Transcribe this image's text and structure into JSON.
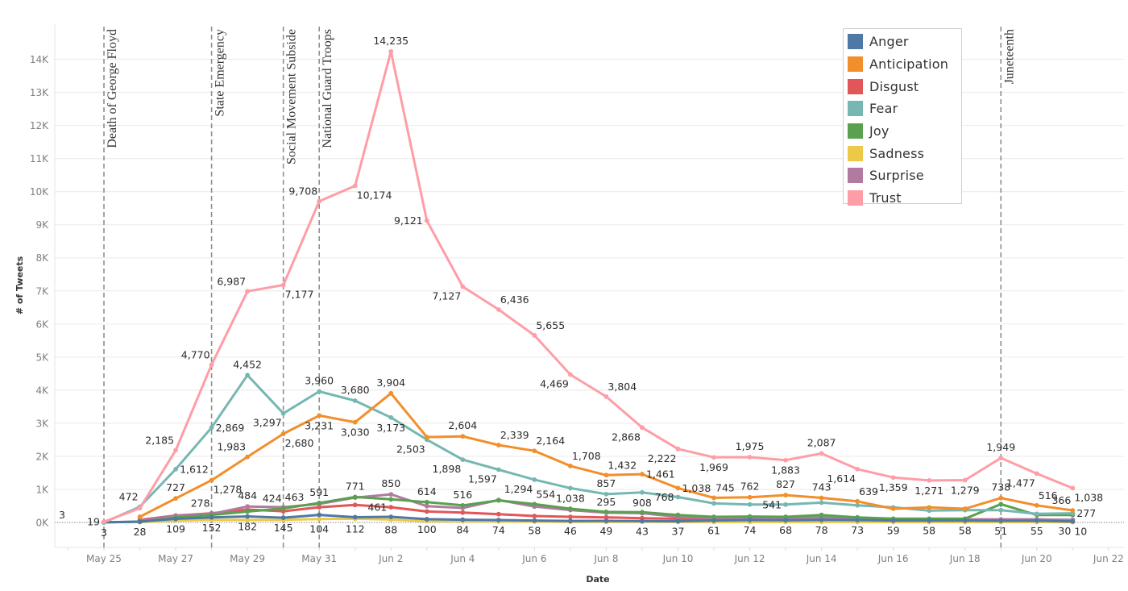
{
  "chart_data": {
    "type": "line",
    "title": "",
    "xlabel": "Date",
    "ylabel": "# of Tweets",
    "xlim_days": [
      -1.37,
      28.43
    ],
    "ylim": [
      -755,
      15060
    ],
    "grid": true,
    "legend_placement": "top-right",
    "dates": [
      "May 25",
      "May 26",
      "May 27",
      "May 28",
      "May 29",
      "May 30",
      "May 31",
      "Jun 1",
      "Jun 2",
      "Jun 3",
      "Jun 4",
      "Jun 5",
      "Jun 6",
      "Jun 7",
      "Jun 8",
      "Jun 9",
      "Jun 10",
      "Jun 11",
      "Jun 12",
      "Jun 13",
      "Jun 14",
      "Jun 15",
      "Jun 16",
      "Jun 17",
      "Jun 18",
      "Jun 19",
      "Jun 20",
      "Jun 21"
    ],
    "x_ticks": [
      "May 25",
      "May 27",
      "May 29",
      "May 31",
      "Jun 2",
      "Jun 4",
      "Jun 6",
      "Jun 8",
      "Jun 10",
      "Jun 12",
      "Jun 14",
      "Jun 16",
      "Jun 18",
      "Jun 20",
      "Jun 22"
    ],
    "x_tick_days": [
      0,
      2,
      4,
      6,
      8,
      10,
      12,
      14,
      16,
      18,
      20,
      22,
      24,
      26,
      28
    ],
    "y_ticks": [
      "0K",
      "1K",
      "2K",
      "3K",
      "4K",
      "5K",
      "6K",
      "7K",
      "8K",
      "9K",
      "10K",
      "11K",
      "12K",
      "13K",
      "14K"
    ],
    "y_tick_values": [
      0,
      1000,
      2000,
      3000,
      4000,
      5000,
      6000,
      7000,
      8000,
      9000,
      10000,
      11000,
      12000,
      13000,
      14000
    ],
    "zero_line_label": "3",
    "reference_lines": [
      {
        "day": 0,
        "label": "Death of George Floyd"
      },
      {
        "day": 3,
        "label": "State Emergency"
      },
      {
        "day": 5,
        "label": "Social Movement Subside"
      },
      {
        "day": 6,
        "label": "National Guard Troops"
      },
      {
        "day": 25,
        "label": "Juneteenth"
      }
    ],
    "series": [
      {
        "name": "Anger",
        "color": "#4e79a7",
        "values": [
          3,
          28,
          109,
          152,
          182,
          145,
          230,
          160,
          170,
          100,
          84,
          74,
          58,
          46,
          49,
          43,
          37,
          61,
          74,
          68,
          78,
          73,
          59,
          58,
          58,
          51,
          55,
          30
        ],
        "labels": [
          {
            "i": 0,
            "text": "3",
            "pos": "below"
          },
          {
            "i": 1,
            "text": "28",
            "pos": "below"
          },
          {
            "i": 2,
            "text": "109",
            "pos": "below"
          },
          {
            "i": 3,
            "text": "152",
            "pos": "below"
          },
          {
            "i": 4,
            "text": "182",
            "pos": "below"
          },
          {
            "i": 5,
            "text": "145",
            "pos": "below"
          },
          {
            "i": 9,
            "text": "100",
            "pos": "below"
          },
          {
            "i": 10,
            "text": "84",
            "pos": "below"
          },
          {
            "i": 11,
            "text": "74",
            "pos": "below"
          },
          {
            "i": 12,
            "text": "58",
            "pos": "below"
          },
          {
            "i": 13,
            "text": "46",
            "pos": "below"
          },
          {
            "i": 14,
            "text": "49",
            "pos": "below"
          },
          {
            "i": 15,
            "text": "43",
            "pos": "below"
          },
          {
            "i": 16,
            "text": "37",
            "pos": "below"
          },
          {
            "i": 17,
            "text": "61",
            "pos": "below"
          },
          {
            "i": 18,
            "text": "74",
            "pos": "below"
          },
          {
            "i": 19,
            "text": "68",
            "pos": "below"
          },
          {
            "i": 20,
            "text": "78",
            "pos": "below"
          },
          {
            "i": 21,
            "text": "73",
            "pos": "below"
          },
          {
            "i": 22,
            "text": "59",
            "pos": "below"
          },
          {
            "i": 23,
            "text": "58",
            "pos": "below"
          },
          {
            "i": 24,
            "text": "58",
            "pos": "below"
          },
          {
            "i": 25,
            "text": "51",
            "pos": "below"
          },
          {
            "i": 26,
            "text": "55",
            "pos": "below"
          },
          {
            "i": 27,
            "text": "30",
            "pos": "below-left"
          }
        ]
      },
      {
        "name": "Anticipation",
        "color": "#f28e2b",
        "values": [
          null,
          170,
          727,
          1278,
          1983,
          2680,
          3231,
          3030,
          3904,
          2580,
          2604,
          2339,
          2164,
          1708,
          1432,
          1461,
          1038,
          745,
          762,
          827,
          743,
          639,
          415,
          455,
          415,
          738,
          516,
          366
        ],
        "labels": [
          {
            "i": 2,
            "text": "727",
            "pos": "above"
          },
          {
            "i": 3,
            "text": "1,278",
            "pos": "below-right"
          },
          {
            "i": 4,
            "text": "1,983",
            "pos": "above-left"
          },
          {
            "i": 5,
            "text": "2,680",
            "pos": "below-right"
          },
          {
            "i": 6,
            "text": "3,231",
            "pos": "below"
          },
          {
            "i": 7,
            "text": "3,030",
            "pos": "below"
          },
          {
            "i": 8,
            "text": "3,904",
            "pos": "above"
          },
          {
            "i": 10,
            "text": "2,604",
            "pos": "above"
          },
          {
            "i": 11,
            "text": "2,339",
            "pos": "above-right"
          },
          {
            "i": 12,
            "text": "2,164",
            "pos": "above-right"
          },
          {
            "i": 13,
            "text": "1,708",
            "pos": "above-right"
          },
          {
            "i": 14,
            "text": "1,432",
            "pos": "above-right"
          },
          {
            "i": 15,
            "text": "1,461",
            "pos": "right"
          },
          {
            "i": 16,
            "text": "1,038",
            "pos": "right"
          },
          {
            "i": 17,
            "text": "745",
            "pos": "above-right"
          },
          {
            "i": 18,
            "text": "762",
            "pos": "above"
          },
          {
            "i": 19,
            "text": "827",
            "pos": "above"
          },
          {
            "i": 20,
            "text": "743",
            "pos": "above"
          },
          {
            "i": 21,
            "text": "639",
            "pos": "above-right"
          },
          {
            "i": 25,
            "text": "738",
            "pos": "above"
          },
          {
            "i": 26,
            "text": "516",
            "pos": "above-right"
          },
          {
            "i": 27,
            "text": "366",
            "pos": "above-left"
          }
        ]
      },
      {
        "name": "Disgust",
        "color": "#e15759",
        "values": [
          null,
          80,
          210,
          278,
          390,
          340,
          460,
          530,
          461,
          333,
          300,
          252,
          195,
          170,
          155,
          130,
          110,
          100,
          100,
          100,
          100,
          100,
          90,
          90,
          90,
          90,
          90,
          70
        ],
        "labels": [
          {
            "i": 3,
            "text": "278",
            "pos": "above-left"
          },
          {
            "i": 8,
            "text": "461",
            "pos": "left"
          }
        ]
      },
      {
        "name": "Fear",
        "color": "#76b7b2",
        "values": [
          1,
          472,
          1612,
          2869,
          4452,
          3297,
          3960,
          3680,
          3173,
          2503,
          1898,
          1597,
          1294,
          1038,
          857,
          908,
          768,
          577,
          545,
          541,
          600,
          520,
          455,
          358,
          374,
          374,
          260,
          277
        ],
        "labels": [
          {
            "i": 1,
            "text": "472",
            "pos": "above-left"
          },
          {
            "i": 2,
            "text": "1,612",
            "pos": "right"
          },
          {
            "i": 3,
            "text": "2,869",
            "pos": "right"
          },
          {
            "i": 4,
            "text": "4,452",
            "pos": "above"
          },
          {
            "i": 5,
            "text": "3,297",
            "pos": "below-left"
          },
          {
            "i": 6,
            "text": "3,960",
            "pos": "above"
          },
          {
            "i": 7,
            "text": "3,680",
            "pos": "above"
          },
          {
            "i": 8,
            "text": "3,173",
            "pos": "below"
          },
          {
            "i": 9,
            "text": "2,503",
            "pos": "below-left"
          },
          {
            "i": 10,
            "text": "1,898",
            "pos": "below-left"
          },
          {
            "i": 11,
            "text": "1,597",
            "pos": "below-left"
          },
          {
            "i": 12,
            "text": "1,294",
            "pos": "below-left"
          },
          {
            "i": 13,
            "text": "1,038",
            "pos": "below"
          },
          {
            "i": 14,
            "text": "857",
            "pos": "above"
          },
          {
            "i": 15,
            "text": "908",
            "pos": "below"
          },
          {
            "i": 16,
            "text": "768",
            "pos": "left"
          },
          {
            "i": 19,
            "text": "541",
            "pos": "left"
          },
          {
            "i": 27,
            "text": "277",
            "pos": "right"
          }
        ]
      },
      {
        "name": "Joy",
        "color": "#59a14f",
        "values": [
          5,
          20,
          150,
          230,
          330,
          424,
          591,
          771,
          700,
          614,
          516,
          667,
          554,
          414,
          320,
          309,
          228,
          170,
          180,
          170,
          228,
          155,
          114,
          114,
          114,
          553,
          228,
          228
        ],
        "labels": [
          {
            "i": 5,
            "text": "424",
            "pos": "above-left"
          },
          {
            "i": 6,
            "text": "591",
            "pos": "above"
          },
          {
            "i": 7,
            "text": "771",
            "pos": "above"
          },
          {
            "i": 9,
            "text": "614",
            "pos": "above"
          },
          {
            "i": 10,
            "text": "516",
            "pos": "above"
          },
          {
            "i": 12,
            "text": "554",
            "pos": "above-right"
          }
        ]
      },
      {
        "name": "Sadness",
        "color": "#edc948",
        "values": [
          null,
          10,
          60,
          80,
          75,
          80,
          104,
          112,
          88,
          40,
          35,
          30,
          25,
          20,
          20,
          20,
          15,
          15,
          15,
          15,
          15,
          15,
          12,
          12,
          12,
          12,
          12,
          10
        ],
        "labels": [
          {
            "i": 6,
            "text": "104",
            "pos": "below"
          },
          {
            "i": 7,
            "text": "112",
            "pos": "below"
          },
          {
            "i": 8,
            "text": "88",
            "pos": "below"
          },
          {
            "i": 27,
            "text": "10",
            "pos": "below-right"
          }
        ]
      },
      {
        "name": "Surprise",
        "color": "#b07aa1",
        "values": [
          null,
          60,
          200,
          260,
          484,
          463,
          560,
          750,
          850,
          496,
          440,
          680,
          480,
          375,
          295,
          280,
          170,
          130,
          120,
          120,
          160,
          110,
          90,
          90,
          90,
          90,
          90,
          80
        ],
        "labels": [
          {
            "i": 4,
            "text": "484",
            "pos": "above"
          },
          {
            "i": 5,
            "text": "463",
            "pos": "above-right"
          },
          {
            "i": 8,
            "text": "850",
            "pos": "above"
          },
          {
            "i": 14,
            "text": "295",
            "pos": "above"
          }
        ]
      },
      {
        "name": "Trust",
        "color": "#ff9da7",
        "values": [
          19,
          430,
          2185,
          4770,
          6987,
          7177,
          9708,
          10174,
          14235,
          9121,
          7127,
          6436,
          5655,
          4469,
          3804,
          2868,
          2222,
          1969,
          1975,
          1883,
          2087,
          1614,
          1359,
          1271,
          1279,
          1949,
          1477,
          1038
        ],
        "labels": [
          {
            "i": 0,
            "text": "19",
            "pos": "left"
          },
          {
            "i": 2,
            "text": "2,185",
            "pos": "above-left"
          },
          {
            "i": 3,
            "text": "4,770",
            "pos": "above-left"
          },
          {
            "i": 4,
            "text": "6,987",
            "pos": "above-left"
          },
          {
            "i": 5,
            "text": "7,177",
            "pos": "below-right"
          },
          {
            "i": 6,
            "text": "9,708",
            "pos": "above-left"
          },
          {
            "i": 7,
            "text": "10,174",
            "pos": "below-right"
          },
          {
            "i": 8,
            "text": "14,235",
            "pos": "above"
          },
          {
            "i": 9,
            "text": "9,121",
            "pos": "left"
          },
          {
            "i": 10,
            "text": "7,127",
            "pos": "below-left"
          },
          {
            "i": 11,
            "text": "6,436",
            "pos": "above-right"
          },
          {
            "i": 12,
            "text": "5,655",
            "pos": "above-right"
          },
          {
            "i": 13,
            "text": "4,469",
            "pos": "below-left"
          },
          {
            "i": 14,
            "text": "3,804",
            "pos": "above-right"
          },
          {
            "i": 15,
            "text": "2,868",
            "pos": "below-left"
          },
          {
            "i": 16,
            "text": "2,222",
            "pos": "below-left"
          },
          {
            "i": 17,
            "text": "1,969",
            "pos": "below"
          },
          {
            "i": 18,
            "text": "1,975",
            "pos": "above"
          },
          {
            "i": 19,
            "text": "1,883",
            "pos": "below"
          },
          {
            "i": 20,
            "text": "2,087",
            "pos": "above"
          },
          {
            "i": 21,
            "text": "1,614",
            "pos": "below-left"
          },
          {
            "i": 22,
            "text": "1,359",
            "pos": "below"
          },
          {
            "i": 23,
            "text": "1,271",
            "pos": "below"
          },
          {
            "i": 24,
            "text": "1,279",
            "pos": "below"
          },
          {
            "i": 25,
            "text": "1,949",
            "pos": "above"
          },
          {
            "i": 26,
            "text": "1,477",
            "pos": "below-left"
          },
          {
            "i": 27,
            "text": "1,038",
            "pos": "below-right"
          }
        ]
      }
    ]
  },
  "legend": {
    "items": [
      {
        "label": "Anger",
        "color": "#4e79a7"
      },
      {
        "label": "Anticipation",
        "color": "#f28e2b"
      },
      {
        "label": "Disgust",
        "color": "#e15759"
      },
      {
        "label": "Fear",
        "color": "#76b7b2"
      },
      {
        "label": "Joy",
        "color": "#59a14f"
      },
      {
        "label": "Sadness",
        "color": "#edc948"
      },
      {
        "label": "Surprise",
        "color": "#b07aa1"
      },
      {
        "label": "Trust",
        "color": "#ff9da7"
      }
    ]
  }
}
